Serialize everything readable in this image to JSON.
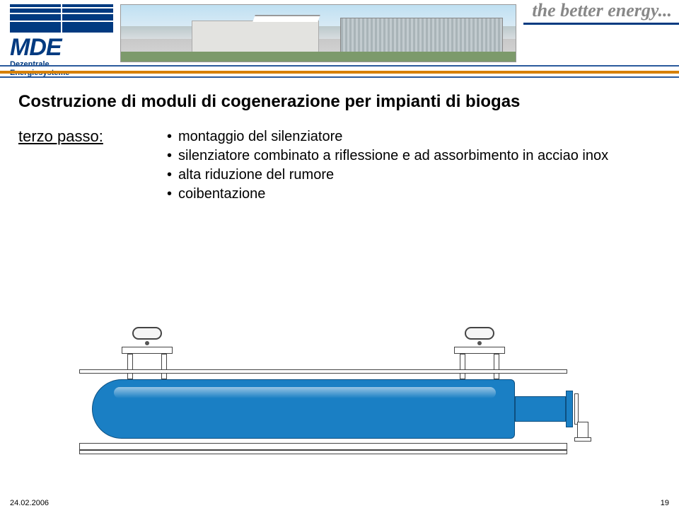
{
  "header": {
    "tagline": "the better energy...",
    "logo_text": "MDE",
    "logo_caption_line1": "Dezentrale",
    "logo_caption_line2": "Energiesysteme"
  },
  "content": {
    "title": "Costruzione di moduli di cogenerazione per impianti di biogas",
    "step_label": "terzo passo:",
    "bullets": [
      "montaggio del silenziatore",
      "silenziatore combinato a riflessione e ad assorbimento in acciao inox",
      "alta riduzione del rumore",
      "coibentazione"
    ]
  },
  "diagram": {
    "tank_color": "#1a7fc4",
    "tank_border": "#0d4f80",
    "frame_color": "#ffffff",
    "frame_border": "#444444"
  },
  "footer": {
    "date": "24.02.2006",
    "page": "19"
  },
  "colors": {
    "brand_blue": "#003a80",
    "rule_orange": "#d68000",
    "rule_blue": "#2a5a9c"
  }
}
